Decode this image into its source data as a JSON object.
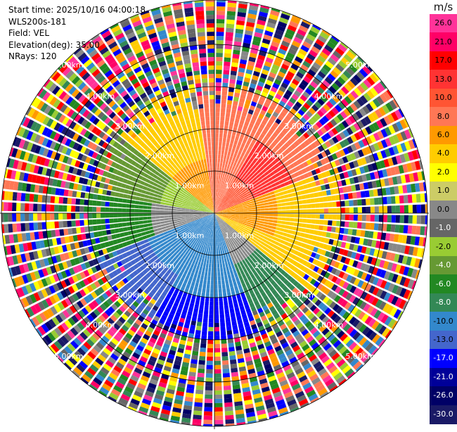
{
  "info": {
    "start_time": "Start time: 2025/10/16 04:00:18",
    "device": "WLS200s-181",
    "field": "Field: VEL",
    "elevation": "Elevation(deg): 35.00",
    "nrays": "NRays: 120"
  },
  "legend": {
    "unit": "m/s",
    "ticks": [
      "26.0",
      "21.0",
      "17.0",
      "13.0",
      "10.0",
      "8.0",
      "6.0",
      "4.0",
      "2.0",
      "1.0",
      "0.0",
      "-1.0",
      "-2.0",
      "-4.0",
      "-6.0",
      "-8.0",
      "-10.0",
      "-13.0",
      "-17.0",
      "-21.0",
      "-26.0",
      "-30.0"
    ],
    "colors": [
      "#ff3399",
      "#ff0066",
      "#ff0000",
      "#ff3333",
      "#ff5533",
      "#ff7755",
      "#ff9900",
      "#ffcc00",
      "#ffff00",
      "#cccc66",
      "#888888",
      "#666666",
      "#99cc33",
      "#669933",
      "#228822",
      "#338855",
      "#3388cc",
      "#4466cc",
      "#0000ff",
      "#000099",
      "#000066",
      "#1a1a66"
    ]
  },
  "range_labels": [
    "1.00km",
    "2.00km",
    "3.00km",
    "4.00km",
    "5.00km"
  ]
}
